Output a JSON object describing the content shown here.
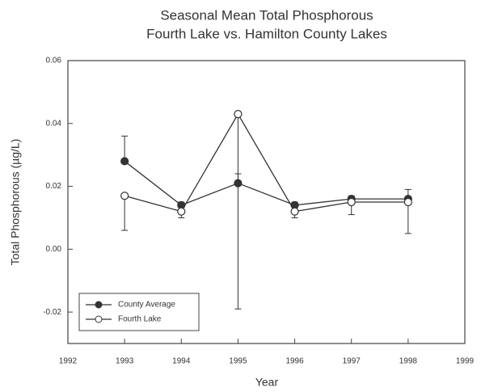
{
  "chart_data": {
    "type": "line",
    "title": "Seasonal Mean Total Phosphorous",
    "subtitle": "Fourth Lake vs. Hamilton County Lakes",
    "xlabel": "Year",
    "ylabel": "Total Phosphorous (µg/L)",
    "x": [
      1993,
      1994,
      1995,
      1996,
      1997,
      1998
    ],
    "series": [
      {
        "name": "County Average",
        "color": "#333333",
        "marker": "filled",
        "values": [
          0.028,
          0.014,
          0.021,
          0.014,
          0.016,
          0.016
        ],
        "errors": [
          0.008,
          0.001,
          0.003,
          0.001,
          0.001,
          0.003
        ]
      },
      {
        "name": "Fourth Lake",
        "color": "#333333",
        "marker": "open",
        "values": [
          0.017,
          0.012,
          0.043,
          0.012,
          0.015,
          0.015
        ],
        "errors": [
          0.011,
          0.002,
          0.062,
          0.002,
          0.004,
          0.01
        ]
      }
    ],
    "xlim": [
      1992,
      1999
    ],
    "xticks": [
      1992,
      1993,
      1994,
      1995,
      1996,
      1997,
      1998,
      1999
    ],
    "ylim": [
      -0.03,
      0.06
    ],
    "yticks": [
      {
        "value": -0.02,
        "label": "-0.02"
      },
      {
        "value": 0,
        "label": "0.00"
      },
      {
        "value": 0.02,
        "label": "0.02"
      },
      {
        "value": 0.04,
        "label": "0.04"
      },
      {
        "value": 0.06,
        "label": "0.06"
      }
    ],
    "grid": false,
    "legend": "lower left"
  }
}
